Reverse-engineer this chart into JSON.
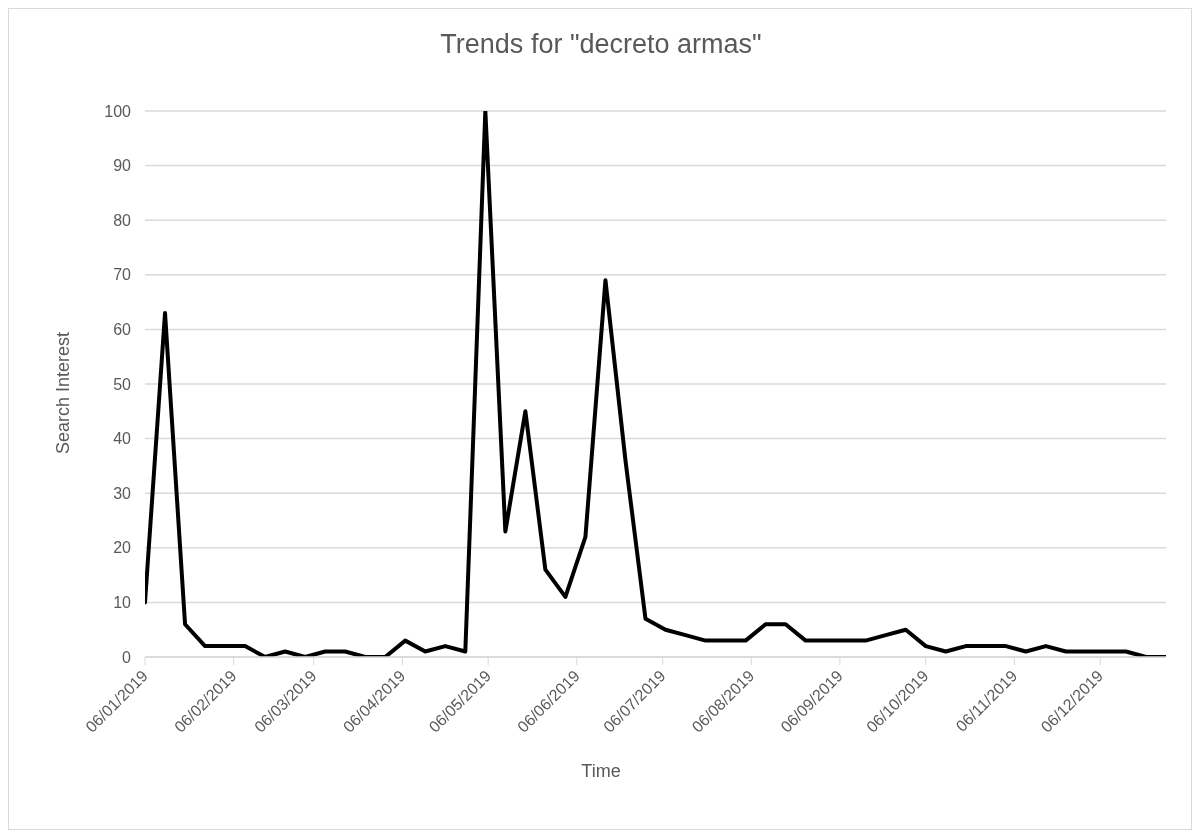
{
  "chart_data": {
    "type": "line",
    "title": "Trends for \"decreto armas\"",
    "xlabel": "Time",
    "ylabel": "Search Interest",
    "x": [
      "2019-01-06",
      "2019-01-13",
      "2019-01-20",
      "2019-01-27",
      "2019-02-03",
      "2019-02-10",
      "2019-02-17",
      "2019-02-24",
      "2019-03-03",
      "2019-03-10",
      "2019-03-17",
      "2019-03-24",
      "2019-03-31",
      "2019-04-07",
      "2019-04-14",
      "2019-04-21",
      "2019-04-28",
      "2019-05-05",
      "2019-05-12",
      "2019-05-19",
      "2019-05-26",
      "2019-06-02",
      "2019-06-09",
      "2019-06-16",
      "2019-06-23",
      "2019-06-30",
      "2019-07-07",
      "2019-07-14",
      "2019-07-21",
      "2019-07-28",
      "2019-08-04",
      "2019-08-11",
      "2019-08-18",
      "2019-08-25",
      "2019-09-01",
      "2019-09-08",
      "2019-09-15",
      "2019-09-22",
      "2019-09-29",
      "2019-10-06",
      "2019-10-13",
      "2019-10-20",
      "2019-10-27",
      "2019-11-03",
      "2019-11-10",
      "2019-11-17",
      "2019-11-24",
      "2019-12-01",
      "2019-12-08",
      "2019-12-15",
      "2019-12-22",
      "2019-12-29"
    ],
    "series": [
      {
        "color": "#000000",
        "values": [
          10,
          63,
          6,
          2,
          2,
          2,
          0,
          1,
          0,
          1,
          1,
          0,
          0,
          3,
          1,
          2,
          1,
          100,
          23,
          45,
          16,
          11,
          22,
          69,
          36,
          7,
          5,
          4,
          3,
          3,
          3,
          6,
          6,
          3,
          3,
          3,
          3,
          4,
          5,
          2,
          1,
          2,
          2,
          2,
          1,
          2,
          1,
          1,
          1,
          1,
          0,
          0
        ]
      }
    ],
    "xlim": [
      "2019-01-06",
      "2019-12-29"
    ],
    "xticks": [
      {
        "value": "2019-01-06",
        "label": "06/01/2019"
      },
      {
        "value": "2019-02-06",
        "label": "06/02/2019"
      },
      {
        "value": "2019-03-06",
        "label": "06/03/2019"
      },
      {
        "value": "2019-04-06",
        "label": "06/04/2019"
      },
      {
        "value": "2019-05-06",
        "label": "06/05/2019"
      },
      {
        "value": "2019-06-06",
        "label": "06/06/2019"
      },
      {
        "value": "2019-07-06",
        "label": "06/07/2019"
      },
      {
        "value": "2019-08-06",
        "label": "06/08/2019"
      },
      {
        "value": "2019-09-06",
        "label": "06/09/2019"
      },
      {
        "value": "2019-10-06",
        "label": "06/10/2019"
      },
      {
        "value": "2019-11-06",
        "label": "06/11/2019"
      },
      {
        "value": "2019-12-06",
        "label": "06/12/2019"
      }
    ],
    "ylim": [
      0,
      100
    ],
    "yticks": [
      0,
      10,
      20,
      30,
      40,
      50,
      60,
      70,
      80,
      90,
      100
    ],
    "grid": "y"
  }
}
